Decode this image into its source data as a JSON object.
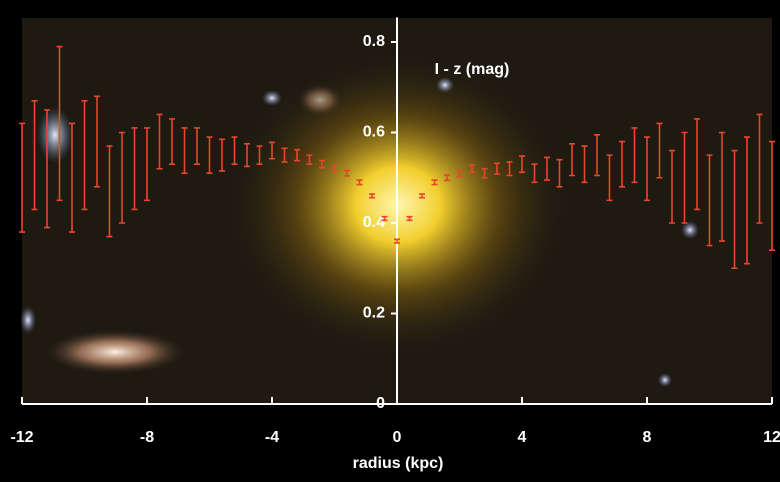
{
  "chart_data": {
    "type": "errorbar",
    "annotation": "I - z (mag)",
    "xlabel": "radius (kpc)",
    "xlim": [
      -12,
      12
    ],
    "ylim": [
      0,
      0.85
    ],
    "xticks": [
      -12,
      -8,
      -4,
      0,
      4,
      8,
      12
    ],
    "yticks": [
      0,
      0.2,
      0.4,
      0.6,
      0.8
    ],
    "color": "#e8452c",
    "x": [
      -12.0,
      -11.6,
      -11.2,
      -10.8,
      -10.4,
      -10.0,
      -9.6,
      -9.2,
      -8.8,
      -8.4,
      -8.0,
      -7.6,
      -7.2,
      -6.8,
      -6.4,
      -6.0,
      -5.6,
      -5.2,
      -4.8,
      -4.4,
      -4.0,
      -3.6,
      -3.2,
      -2.8,
      -2.4,
      -2.0,
      -1.6,
      -1.2,
      -0.8,
      -0.4,
      0,
      0.4,
      0.8,
      1.2,
      1.6,
      2.0,
      2.4,
      2.8,
      3.2,
      3.6,
      4.0,
      4.4,
      4.8,
      5.2,
      5.6,
      6.0,
      6.4,
      6.8,
      7.2,
      7.6,
      8.0,
      8.4,
      8.8,
      9.2,
      9.6,
      10.0,
      10.4,
      10.8,
      11.2,
      11.6,
      12.0
    ],
    "values": [
      0.5,
      0.55,
      0.52,
      0.62,
      0.5,
      0.55,
      0.58,
      0.47,
      0.5,
      0.52,
      0.53,
      0.58,
      0.58,
      0.56,
      0.57,
      0.55,
      0.55,
      0.56,
      0.55,
      0.55,
      0.56,
      0.55,
      0.55,
      0.54,
      0.53,
      0.52,
      0.51,
      0.49,
      0.46,
      0.41,
      0.36,
      0.41,
      0.46,
      0.49,
      0.5,
      0.51,
      0.52,
      0.51,
      0.52,
      0.52,
      0.53,
      0.51,
      0.52,
      0.51,
      0.54,
      0.53,
      0.55,
      0.5,
      0.53,
      0.55,
      0.52,
      0.56,
      0.48,
      0.5,
      0.53,
      0.45,
      0.48,
      0.43,
      0.45,
      0.52,
      0.46
    ],
    "errors": [
      0.12,
      0.12,
      0.13,
      0.17,
      0.12,
      0.12,
      0.1,
      0.1,
      0.1,
      0.09,
      0.08,
      0.06,
      0.05,
      0.05,
      0.04,
      0.04,
      0.035,
      0.03,
      0.025,
      0.02,
      0.018,
      0.015,
      0.012,
      0.01,
      0.008,
      0.007,
      0.006,
      0.005,
      0.004,
      0.004,
      0.004,
      0.004,
      0.004,
      0.005,
      0.006,
      0.007,
      0.008,
      0.01,
      0.012,
      0.015,
      0.018,
      0.02,
      0.025,
      0.03,
      0.035,
      0.04,
      0.045,
      0.05,
      0.05,
      0.06,
      0.07,
      0.06,
      0.08,
      0.1,
      0.1,
      0.1,
      0.12,
      0.13,
      0.14,
      0.12,
      0.12
    ]
  }
}
